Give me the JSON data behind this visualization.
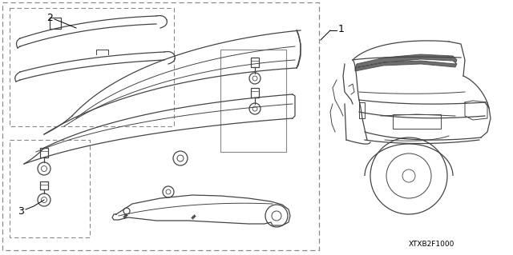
{
  "background_color": "#ffffff",
  "line_color": "#444444",
  "text_color": "#000000",
  "diagram_code": "XTXB2F1000",
  "fig_width": 6.4,
  "fig_height": 3.19,
  "dpi": 100
}
